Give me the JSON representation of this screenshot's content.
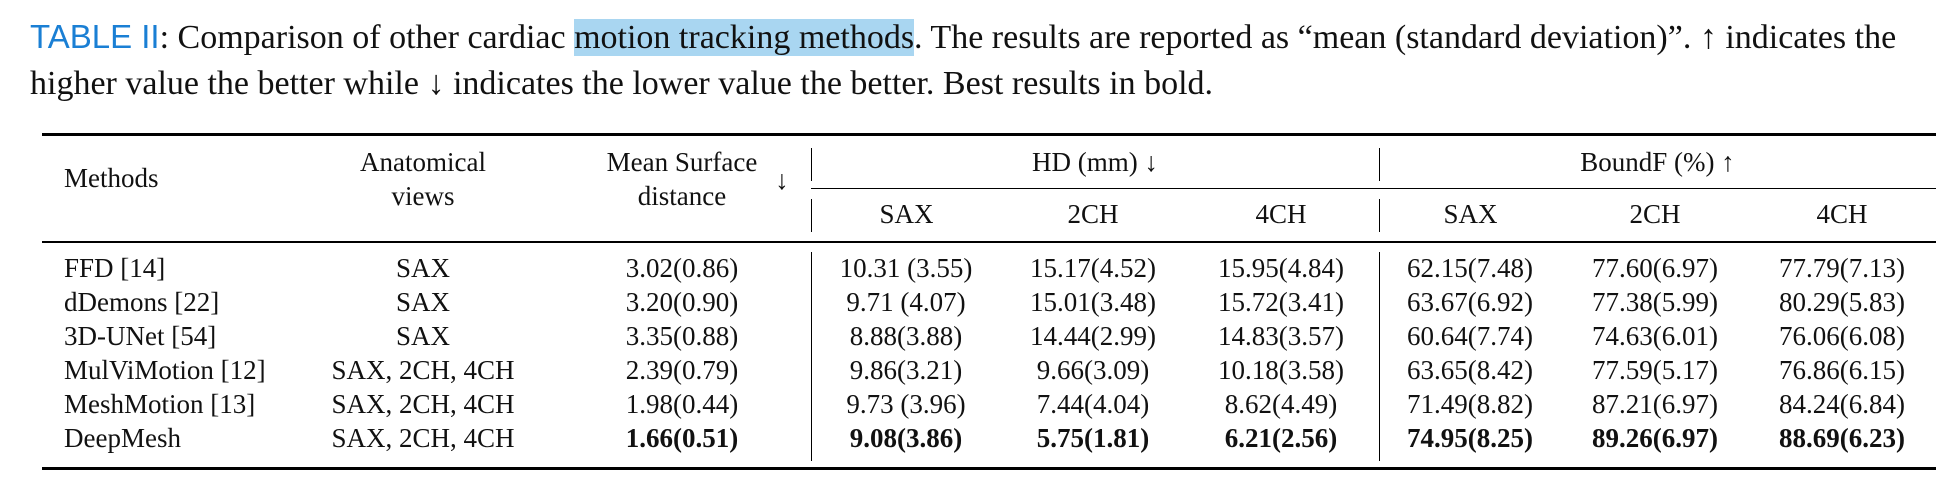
{
  "caption": {
    "label": "TABLE II",
    "pre": ": Comparison of other cardiac ",
    "highlight": "motion tracking methods",
    "post": ". The results are reported as “mean (standard deviation)”. ↑ indicates the higher value the better while ↓ indicates the lower value the better. Best results in bold."
  },
  "table": {
    "headers": {
      "methods": "Methods",
      "anat_line1": "Anatomical",
      "anat_line2": "views",
      "msd_line1": "Mean Surface",
      "msd_line2": "distance",
      "msd_arrow": "↓",
      "hd_group": "HD (mm) ↓",
      "boundf_group": "BoundF (%) ↑",
      "sub": [
        "SAX",
        "2CH",
        "4CH",
        "SAX",
        "2CH",
        "4CH"
      ]
    },
    "rows": [
      {
        "method": "FFD [14]",
        "views": "SAX",
        "msd": "3.02(0.86)",
        "hd_sax": "10.31 (3.55)",
        "hd_2ch": "15.17(4.52)",
        "hd_4ch": "15.95(4.84)",
        "bf_sax": "62.15(7.48)",
        "bf_2ch": "77.60(6.97)",
        "bf_4ch": "77.79(7.13)"
      },
      {
        "method": "dDemons [22]",
        "views": "SAX",
        "msd": "3.20(0.90)",
        "hd_sax": "9.71 (4.07)",
        "hd_2ch": "15.01(3.48)",
        "hd_4ch": "15.72(3.41)",
        "bf_sax": "63.67(6.92)",
        "bf_2ch": "77.38(5.99)",
        "bf_4ch": "80.29(5.83)"
      },
      {
        "method": "3D-UNet [54]",
        "views": "SAX",
        "msd": "3.35(0.88)",
        "hd_sax": "8.88(3.88)",
        "hd_2ch": "14.44(2.99)",
        "hd_4ch": "14.83(3.57)",
        "bf_sax": "60.64(7.74)",
        "bf_2ch": "74.63(6.01)",
        "bf_4ch": "76.06(6.08)"
      },
      {
        "method": "MulViMotion [12]",
        "views": "SAX, 2CH, 4CH",
        "msd": "2.39(0.79)",
        "hd_sax": "9.86(3.21)",
        "hd_2ch": "9.66(3.09)",
        "hd_4ch": "10.18(3.58)",
        "bf_sax": "63.65(8.42)",
        "bf_2ch": "77.59(5.17)",
        "bf_4ch": "76.86(6.15)"
      },
      {
        "method": "MeshMotion [13]",
        "views": "SAX, 2CH, 4CH",
        "msd": "1.98(0.44)",
        "hd_sax": "9.73 (3.96)",
        "hd_2ch": "7.44(4.04)",
        "hd_4ch": "8.62(4.49)",
        "bf_sax": "71.49(8.82)",
        "bf_2ch": "87.21(6.97)",
        "bf_4ch": "84.24(6.84)"
      },
      {
        "method": "DeepMesh",
        "views": "SAX, 2CH, 4CH",
        "msd": "1.66(0.51)",
        "hd_sax": "9.08(3.86)",
        "hd_2ch": "5.75(1.81)",
        "hd_4ch": "6.21(2.56)",
        "bf_sax": "74.95(8.25)",
        "bf_2ch": "89.26(6.97)",
        "bf_4ch": "88.69(6.23)"
      }
    ]
  }
}
